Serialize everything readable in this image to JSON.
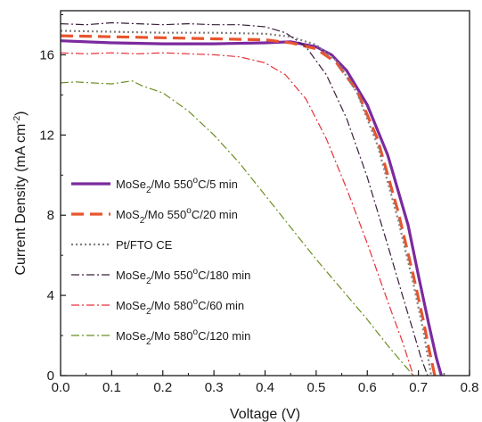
{
  "chart_data": {
    "type": "line",
    "title": "",
    "xlabel": "Voltage (V)",
    "ylabel_main": "Current Density (mA cm",
    "ylabel_sup": "-2",
    "ylabel_close": ")",
    "xlim": [
      0.0,
      0.8
    ],
    "ylim": [
      0,
      18.2
    ],
    "xticks": [
      0.0,
      0.1,
      0.2,
      0.3,
      0.4,
      0.5,
      0.6,
      0.7,
      0.8
    ],
    "xtick_labels": [
      "0.0",
      "0.1",
      "0.2",
      "0.3",
      "0.4",
      "0.5",
      "0.6",
      "0.7",
      "0.8"
    ],
    "yticks": [
      0,
      4,
      8,
      12,
      16
    ],
    "ytick_labels": [
      "0",
      "4",
      "8",
      "12",
      "16"
    ],
    "grid": false,
    "legend_position": "left-center",
    "series": [
      {
        "label_parts": [
          "MoSe",
          "2",
          "/Mo 550",
          "o",
          "C/5 min"
        ],
        "color": "#7b2a9e",
        "dash": "solid",
        "width": 3.2,
        "x": [
          0.0,
          0.1,
          0.2,
          0.3,
          0.4,
          0.45,
          0.5,
          0.53,
          0.56,
          0.6,
          0.64,
          0.68,
          0.7,
          0.72,
          0.735,
          0.745
        ],
        "y": [
          16.7,
          16.6,
          16.55,
          16.55,
          16.6,
          16.65,
          16.4,
          16.0,
          15.2,
          13.5,
          11.0,
          7.5,
          5.0,
          2.6,
          0.9,
          0.0
        ]
      },
      {
        "label_parts": [
          "MoS",
          "2",
          "/Mo 550",
          "o",
          "C/20 min"
        ],
        "color": "#e8552e",
        "dash": "14,7",
        "width": 3.2,
        "x": [
          0.0,
          0.1,
          0.2,
          0.3,
          0.4,
          0.45,
          0.5,
          0.54,
          0.58,
          0.62,
          0.66,
          0.69,
          0.71,
          0.72,
          0.732
        ],
        "y": [
          16.95,
          16.9,
          16.85,
          16.8,
          16.75,
          16.6,
          16.3,
          15.6,
          14.2,
          11.8,
          8.2,
          5.0,
          2.7,
          1.4,
          0.0
        ]
      },
      {
        "label_parts": [
          "Pt/FTO CE"
        ],
        "color": "#808080",
        "dash": "2,3",
        "width": 2.2,
        "x": [
          0.0,
          0.1,
          0.2,
          0.3,
          0.4,
          0.45,
          0.5,
          0.54,
          0.58,
          0.62,
          0.66,
          0.69,
          0.71,
          0.725
        ],
        "y": [
          17.2,
          17.15,
          17.1,
          17.1,
          17.05,
          16.9,
          16.5,
          15.7,
          14.1,
          11.5,
          7.8,
          4.6,
          2.2,
          0.0
        ]
      },
      {
        "label_parts": [
          "MoSe",
          "2",
          "/Mo 550",
          "o",
          "C/180 min"
        ],
        "color": "#3a1e3a",
        "dash": "9,3,2,3",
        "width": 1.2,
        "x": [
          0.0,
          0.05,
          0.1,
          0.15,
          0.2,
          0.25,
          0.3,
          0.35,
          0.4,
          0.44,
          0.48,
          0.52,
          0.56,
          0.6,
          0.64,
          0.67,
          0.69,
          0.705,
          0.718
        ],
        "y": [
          17.55,
          17.5,
          17.6,
          17.55,
          17.5,
          17.55,
          17.5,
          17.5,
          17.4,
          17.1,
          16.4,
          15.0,
          12.8,
          9.9,
          6.5,
          3.9,
          2.2,
          0.9,
          0.0
        ]
      },
      {
        "label_parts": [
          "MoSe",
          "2",
          "/Mo 580",
          "o",
          "C/60 min"
        ],
        "color": "#e8303a",
        "dash": "9,3,2,3",
        "width": 1.2,
        "x": [
          0.0,
          0.05,
          0.1,
          0.15,
          0.2,
          0.25,
          0.3,
          0.35,
          0.4,
          0.44,
          0.48,
          0.52,
          0.56,
          0.6,
          0.64,
          0.67,
          0.69
        ],
        "y": [
          16.1,
          16.05,
          16.1,
          16.05,
          16.1,
          16.05,
          16.0,
          15.9,
          15.6,
          15.0,
          13.8,
          11.8,
          9.3,
          6.6,
          3.7,
          1.6,
          0.0
        ]
      },
      {
        "label_parts": [
          "MoSe",
          "2",
          "/Mo 580",
          "o",
          "C/120 min"
        ],
        "color": "#6b8e23",
        "dash": "9,3,2,3",
        "width": 1.2,
        "x": [
          0.0,
          0.03,
          0.06,
          0.1,
          0.14,
          0.16,
          0.2,
          0.25,
          0.3,
          0.35,
          0.4,
          0.45,
          0.5,
          0.55,
          0.6,
          0.64,
          0.67,
          0.69
        ],
        "y": [
          14.6,
          14.65,
          14.6,
          14.55,
          14.7,
          14.45,
          14.1,
          13.2,
          12.0,
          10.6,
          9.0,
          7.4,
          5.8,
          4.3,
          2.8,
          1.5,
          0.6,
          0.0
        ]
      }
    ]
  }
}
